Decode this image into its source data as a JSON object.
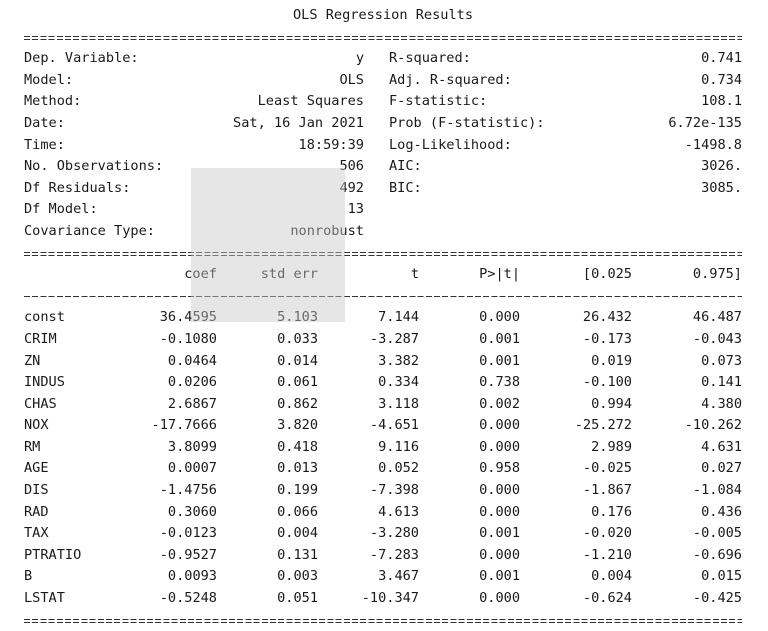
{
  "title": "OLS Regression Results",
  "info_left": [
    {
      "label": "Dep. Variable:",
      "value": "y"
    },
    {
      "label": "Model:",
      "value": "OLS"
    },
    {
      "label": "Method:",
      "value": "Least Squares"
    },
    {
      "label": "Date:",
      "value": "Sat, 16 Jan 2021"
    },
    {
      "label": "Time:",
      "value": "18:59:39"
    },
    {
      "label": "No. Observations:",
      "value": "506"
    },
    {
      "label": "Df Residuals:",
      "value": "492"
    },
    {
      "label": "Df Model:",
      "value": "13"
    },
    {
      "label": "Covariance Type:",
      "value": "nonrobust"
    }
  ],
  "info_right": [
    {
      "label": "R-squared:",
      "value": "0.741"
    },
    {
      "label": "Adj. R-squared:",
      "value": "0.734"
    },
    {
      "label": "F-statistic:",
      "value": "108.1"
    },
    {
      "label": "Prob (F-statistic):",
      "value": "6.72e-135"
    },
    {
      "label": "Log-Likelihood:",
      "value": "-1498.8"
    },
    {
      "label": "AIC:",
      "value": "3026."
    },
    {
      "label": "BIC:",
      "value": "3085."
    }
  ],
  "coef_headers": [
    "coef",
    "std err",
    "t",
    "P>|t|",
    "[0.025",
    "0.975]"
  ],
  "coef_rows": [
    {
      "name": "const",
      "values": [
        "36.4595",
        "5.103",
        "7.144",
        "0.000",
        "26.432",
        "46.487"
      ]
    },
    {
      "name": "CRIM",
      "values": [
        "-0.1080",
        "0.033",
        "-3.287",
        "0.001",
        "-0.173",
        "-0.043"
      ]
    },
    {
      "name": "ZN",
      "values": [
        "0.0464",
        "0.014",
        "3.382",
        "0.001",
        "0.019",
        "0.073"
      ]
    },
    {
      "name": "INDUS",
      "values": [
        "0.0206",
        "0.061",
        "0.334",
        "0.738",
        "-0.100",
        "0.141"
      ]
    },
    {
      "name": "CHAS",
      "values": [
        "2.6867",
        "0.862",
        "3.118",
        "0.002",
        "0.994",
        "4.380"
      ]
    },
    {
      "name": "NOX",
      "values": [
        "-17.7666",
        "3.820",
        "-4.651",
        "0.000",
        "-25.272",
        "-10.262"
      ]
    },
    {
      "name": "RM",
      "values": [
        "3.8099",
        "0.418",
        "9.116",
        "0.000",
        "2.989",
        "4.631"
      ]
    },
    {
      "name": "AGE",
      "values": [
        "0.0007",
        "0.013",
        "0.052",
        "0.958",
        "-0.025",
        "0.027"
      ]
    },
    {
      "name": "DIS",
      "values": [
        "-1.4756",
        "0.199",
        "-7.398",
        "0.000",
        "-1.867",
        "-1.084"
      ]
    },
    {
      "name": "RAD",
      "values": [
        "0.3060",
        "0.066",
        "4.613",
        "0.000",
        "0.176",
        "0.436"
      ]
    },
    {
      "name": "TAX",
      "values": [
        "-0.0123",
        "0.004",
        "-3.280",
        "0.001",
        "-0.020",
        "-0.005"
      ]
    },
    {
      "name": "PTRATIO",
      "values": [
        "-0.9527",
        "0.131",
        "-7.283",
        "0.000",
        "-1.210",
        "-0.696"
      ]
    },
    {
      "name": "B",
      "values": [
        "0.0093",
        "0.003",
        "3.467",
        "0.001",
        "0.004",
        "0.015"
      ]
    },
    {
      "name": "LSTAT",
      "values": [
        "-0.5248",
        "0.051",
        "-10.347",
        "0.000",
        "-0.624",
        "-0.425"
      ]
    }
  ]
}
